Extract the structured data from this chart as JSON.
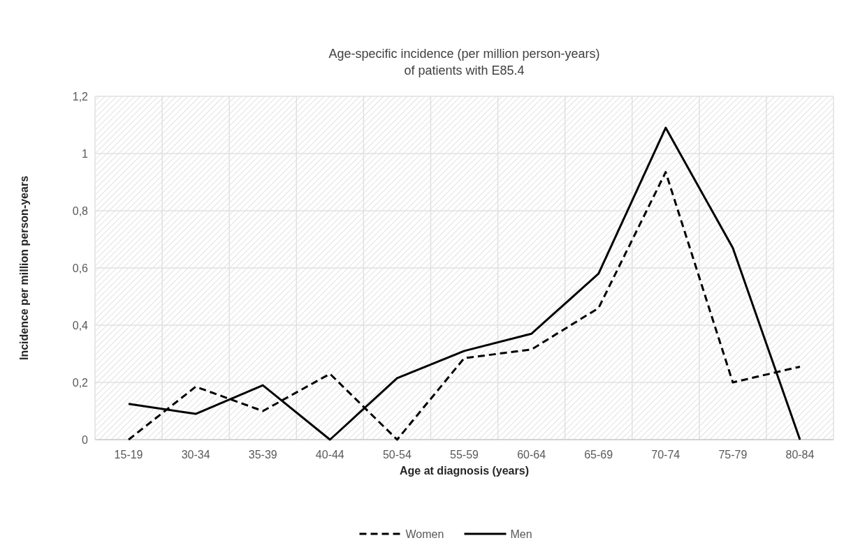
{
  "chart_data": {
    "type": "line",
    "title": "Age-specific incidence (per million person-years)\nof patients with E85.4",
    "xlabel": "Age at diagnosis (years)",
    "ylabel": "Incidence per million person-years",
    "categories": [
      "15-19",
      "30-34",
      "35-39",
      "40-44",
      "50-54",
      "55-59",
      "60-64",
      "65-69",
      "70-74",
      "75-79",
      "80-84"
    ],
    "series": [
      {
        "name": "Women",
        "color": "#000000",
        "line_style": "dashed",
        "values": [
          0,
          0.185,
          0.1,
          0.23,
          0,
          0.285,
          0.315,
          0.46,
          0.935,
          0.2,
          0.255
        ]
      },
      {
        "name": "Men",
        "color": "#000000",
        "line_style": "solid",
        "values": [
          0.125,
          0.09,
          0.19,
          0,
          0.215,
          0.31,
          0.37,
          0.58,
          1.09,
          0.67,
          0
        ]
      }
    ],
    "ylim": [
      0,
      1.2
    ],
    "yticks": [
      0,
      {
        "value": 0.2,
        "label": "0,2"
      },
      {
        "value": 0.4,
        "label": "0,4"
      },
      {
        "value": 0.6,
        "label": "0,6"
      },
      {
        "value": 0.8,
        "label": "0,8"
      },
      1,
      {
        "value": 1.2,
        "label": "1,2"
      }
    ],
    "grid": true,
    "legend": "bottom"
  }
}
